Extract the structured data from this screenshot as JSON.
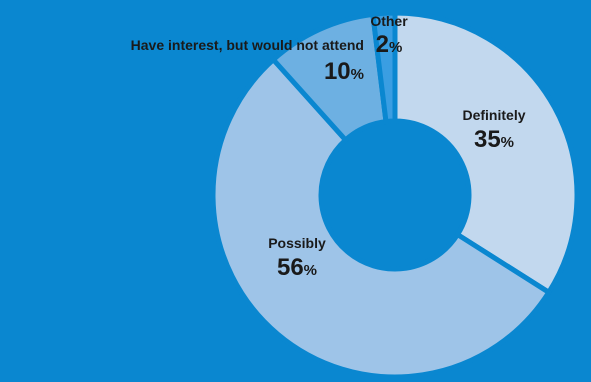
{
  "chart_data": {
    "type": "pie",
    "variant": "donut",
    "title": "",
    "slices": [
      {
        "label": "Definitely",
        "value": 35,
        "color": "#c2d8ee"
      },
      {
        "label": "Possibly",
        "value": 56,
        "color": "#9ec4e8"
      },
      {
        "label": "Have interest, but would not attend",
        "value": 10,
        "color": "#6db0e2"
      },
      {
        "label": "Other",
        "value": 2,
        "color": "#3a9ee2"
      }
    ],
    "value_suffix": "%",
    "background": "#0a87d0",
    "start_angle_deg": 0,
    "direction": "clockwise"
  }
}
